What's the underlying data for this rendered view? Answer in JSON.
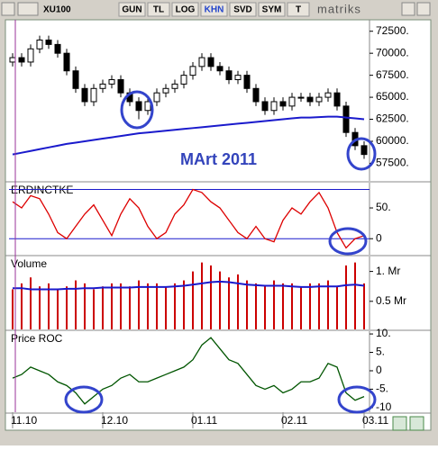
{
  "toolbar": {
    "symbol": "XU100",
    "buttons": [
      "GUN",
      "TL",
      "LOG",
      "KHN",
      "SVD",
      "SYM",
      "T"
    ],
    "active": "KHN",
    "logo": "matriks"
  },
  "chart_data": [
    {
      "type": "candlestick",
      "annotation": "MArt 2011",
      "up_color": "#ffffff",
      "down_color": "#000000",
      "open": [
        69000,
        69500,
        69000,
        70500,
        71500,
        71000,
        70000,
        68000,
        66000,
        64500,
        66000,
        66500,
        67000,
        65500,
        64500,
        63500,
        64500,
        65500,
        66000,
        66500,
        67500,
        68500,
        69500,
        68500,
        68000,
        67000,
        67500,
        66000,
        64500,
        63500,
        64500,
        64000,
        65000,
        65000,
        64500,
        65000,
        65500,
        64000,
        61000,
        59500
      ],
      "high": [
        70000,
        70000,
        71000,
        72000,
        72000,
        71500,
        70500,
        68500,
        66500,
        66500,
        67000,
        67500,
        67500,
        66000,
        65000,
        65000,
        66000,
        66500,
        67000,
        68000,
        69000,
        70000,
        70000,
        69000,
        68500,
        68000,
        68000,
        66500,
        65000,
        65000,
        65000,
        65500,
        65500,
        65500,
        65500,
        66000,
        66000,
        64500,
        61500,
        60000
      ],
      "low": [
        68500,
        68500,
        68500,
        70000,
        70500,
        69500,
        67500,
        65500,
        64000,
        64000,
        65500,
        66000,
        65000,
        64000,
        62500,
        63000,
        64000,
        65000,
        65500,
        66000,
        67000,
        68000,
        68000,
        67500,
        66500,
        66500,
        65500,
        64000,
        63000,
        63000,
        63500,
        63500,
        64500,
        64000,
        64000,
        64500,
        63500,
        60500,
        59000,
        58000
      ],
      "close": [
        69500,
        69000,
        70500,
        71500,
        71000,
        70000,
        68000,
        66000,
        64500,
        66000,
        66500,
        67000,
        65500,
        64500,
        63500,
        64500,
        65500,
        66000,
        66500,
        67500,
        68500,
        69500,
        68500,
        68000,
        67000,
        67500,
        66000,
        64500,
        63500,
        64500,
        64000,
        65000,
        65000,
        64500,
        65000,
        65500,
        64000,
        61000,
        59500,
        58500
      ],
      "overlay": {
        "color": "#1a1acc",
        "values": [
          58500,
          58700,
          58900,
          59100,
          59300,
          59500,
          59700,
          59850,
          60000,
          60150,
          60300,
          60450,
          60600,
          60750,
          60900,
          61000,
          61100,
          61200,
          61300,
          61400,
          61500,
          61600,
          61700,
          61800,
          61900,
          62000,
          62100,
          62200,
          62300,
          62400,
          62500,
          62600,
          62700,
          62700,
          62750,
          62800,
          62800,
          62700,
          62600,
          62500
        ]
      },
      "ylim": [
        55500,
        73800
      ],
      "yticks": [
        {
          "value": 72500,
          "label": "72500."
        },
        {
          "value": 70000,
          "label": "70000."
        },
        {
          "value": 67500,
          "label": "67500."
        },
        {
          "value": 65000,
          "label": "65000."
        },
        {
          "value": 62500,
          "label": "62500."
        },
        {
          "value": 60000,
          "label": "60000."
        },
        {
          "value": 57500,
          "label": "57500."
        }
      ]
    },
    {
      "type": "line",
      "title": "ERDINCTKE",
      "color": "#dd0000",
      "values": [
        60,
        50,
        70,
        65,
        40,
        10,
        0,
        20,
        40,
        55,
        30,
        5,
        40,
        65,
        50,
        20,
        0,
        10,
        40,
        55,
        80,
        75,
        60,
        50,
        30,
        10,
        0,
        20,
        0,
        -5,
        30,
        50,
        40,
        60,
        75,
        50,
        10,
        -15,
        0,
        5
      ],
      "levels": [
        80,
        0
      ],
      "level_color": "#1a1acc",
      "ylim": [
        -26,
        91
      ],
      "yticks": [
        {
          "value": 50,
          "label": "50."
        },
        0
      ]
    },
    {
      "type": "bar",
      "title": "Volume",
      "color": "#cc0000",
      "values": [
        0.7,
        0.8,
        0.9,
        0.75,
        0.8,
        0.7,
        0.75,
        0.85,
        0.8,
        0.7,
        0.75,
        0.8,
        0.8,
        0.75,
        0.85,
        0.8,
        0.8,
        0.75,
        0.8,
        0.85,
        1.0,
        1.15,
        1.1,
        1.0,
        0.9,
        0.95,
        0.85,
        0.8,
        0.75,
        0.85,
        0.8,
        0.8,
        0.75,
        0.8,
        0.8,
        0.85,
        0.75,
        1.1,
        1.15,
        0.8
      ],
      "overlay": {
        "color": "#1a1acc",
        "values": [
          0.72,
          0.72,
          0.7,
          0.7,
          0.7,
          0.7,
          0.71,
          0.71,
          0.72,
          0.72,
          0.73,
          0.73,
          0.73,
          0.73,
          0.74,
          0.74,
          0.74,
          0.74,
          0.75,
          0.76,
          0.78,
          0.8,
          0.82,
          0.83,
          0.82,
          0.8,
          0.78,
          0.77,
          0.76,
          0.76,
          0.76,
          0.75,
          0.74,
          0.74,
          0.75,
          0.75,
          0.75,
          0.77,
          0.78,
          0.76
        ]
      },
      "ylim": [
        0.03,
        1.25
      ],
      "yticks": [
        {
          "value": 1,
          "label": "1. Mr"
        },
        {
          "value": 0.5,
          "label": "0.5 Mr"
        }
      ]
    },
    {
      "type": "line",
      "title": "Price ROC",
      "color": "#005500",
      "values": [
        -2,
        -1,
        1,
        0,
        -1,
        -3,
        -4,
        -6,
        -9,
        -7,
        -5,
        -4,
        -2,
        -1,
        -3,
        -3,
        -2,
        -1,
        0,
        1,
        3,
        7,
        9,
        6,
        3,
        2,
        -1,
        -4,
        -5,
        -4,
        -6,
        -5,
        -3,
        -3,
        -2,
        2,
        1,
        -6,
        -8,
        -7
      ],
      "categories": [
        "11.10",
        null,
        null,
        null,
        null,
        null,
        null,
        null,
        null,
        null,
        "12.10",
        null,
        null,
        null,
        null,
        null,
        null,
        null,
        null,
        null,
        "01.11",
        null,
        null,
        null,
        null,
        null,
        null,
        null,
        null,
        null,
        "02.11",
        null,
        null,
        null,
        null,
        null,
        null,
        null,
        null,
        "03.11"
      ],
      "ylim": [
        -11.25,
        10.75
      ],
      "yticks": [
        {
          "value": 10,
          "label": "10."
        },
        {
          "value": 5,
          "label": "5."
        },
        0,
        {
          "value": -5,
          "label": "-5."
        },
        {
          "value": -10,
          "label": "-10"
        }
      ]
    }
  ]
}
